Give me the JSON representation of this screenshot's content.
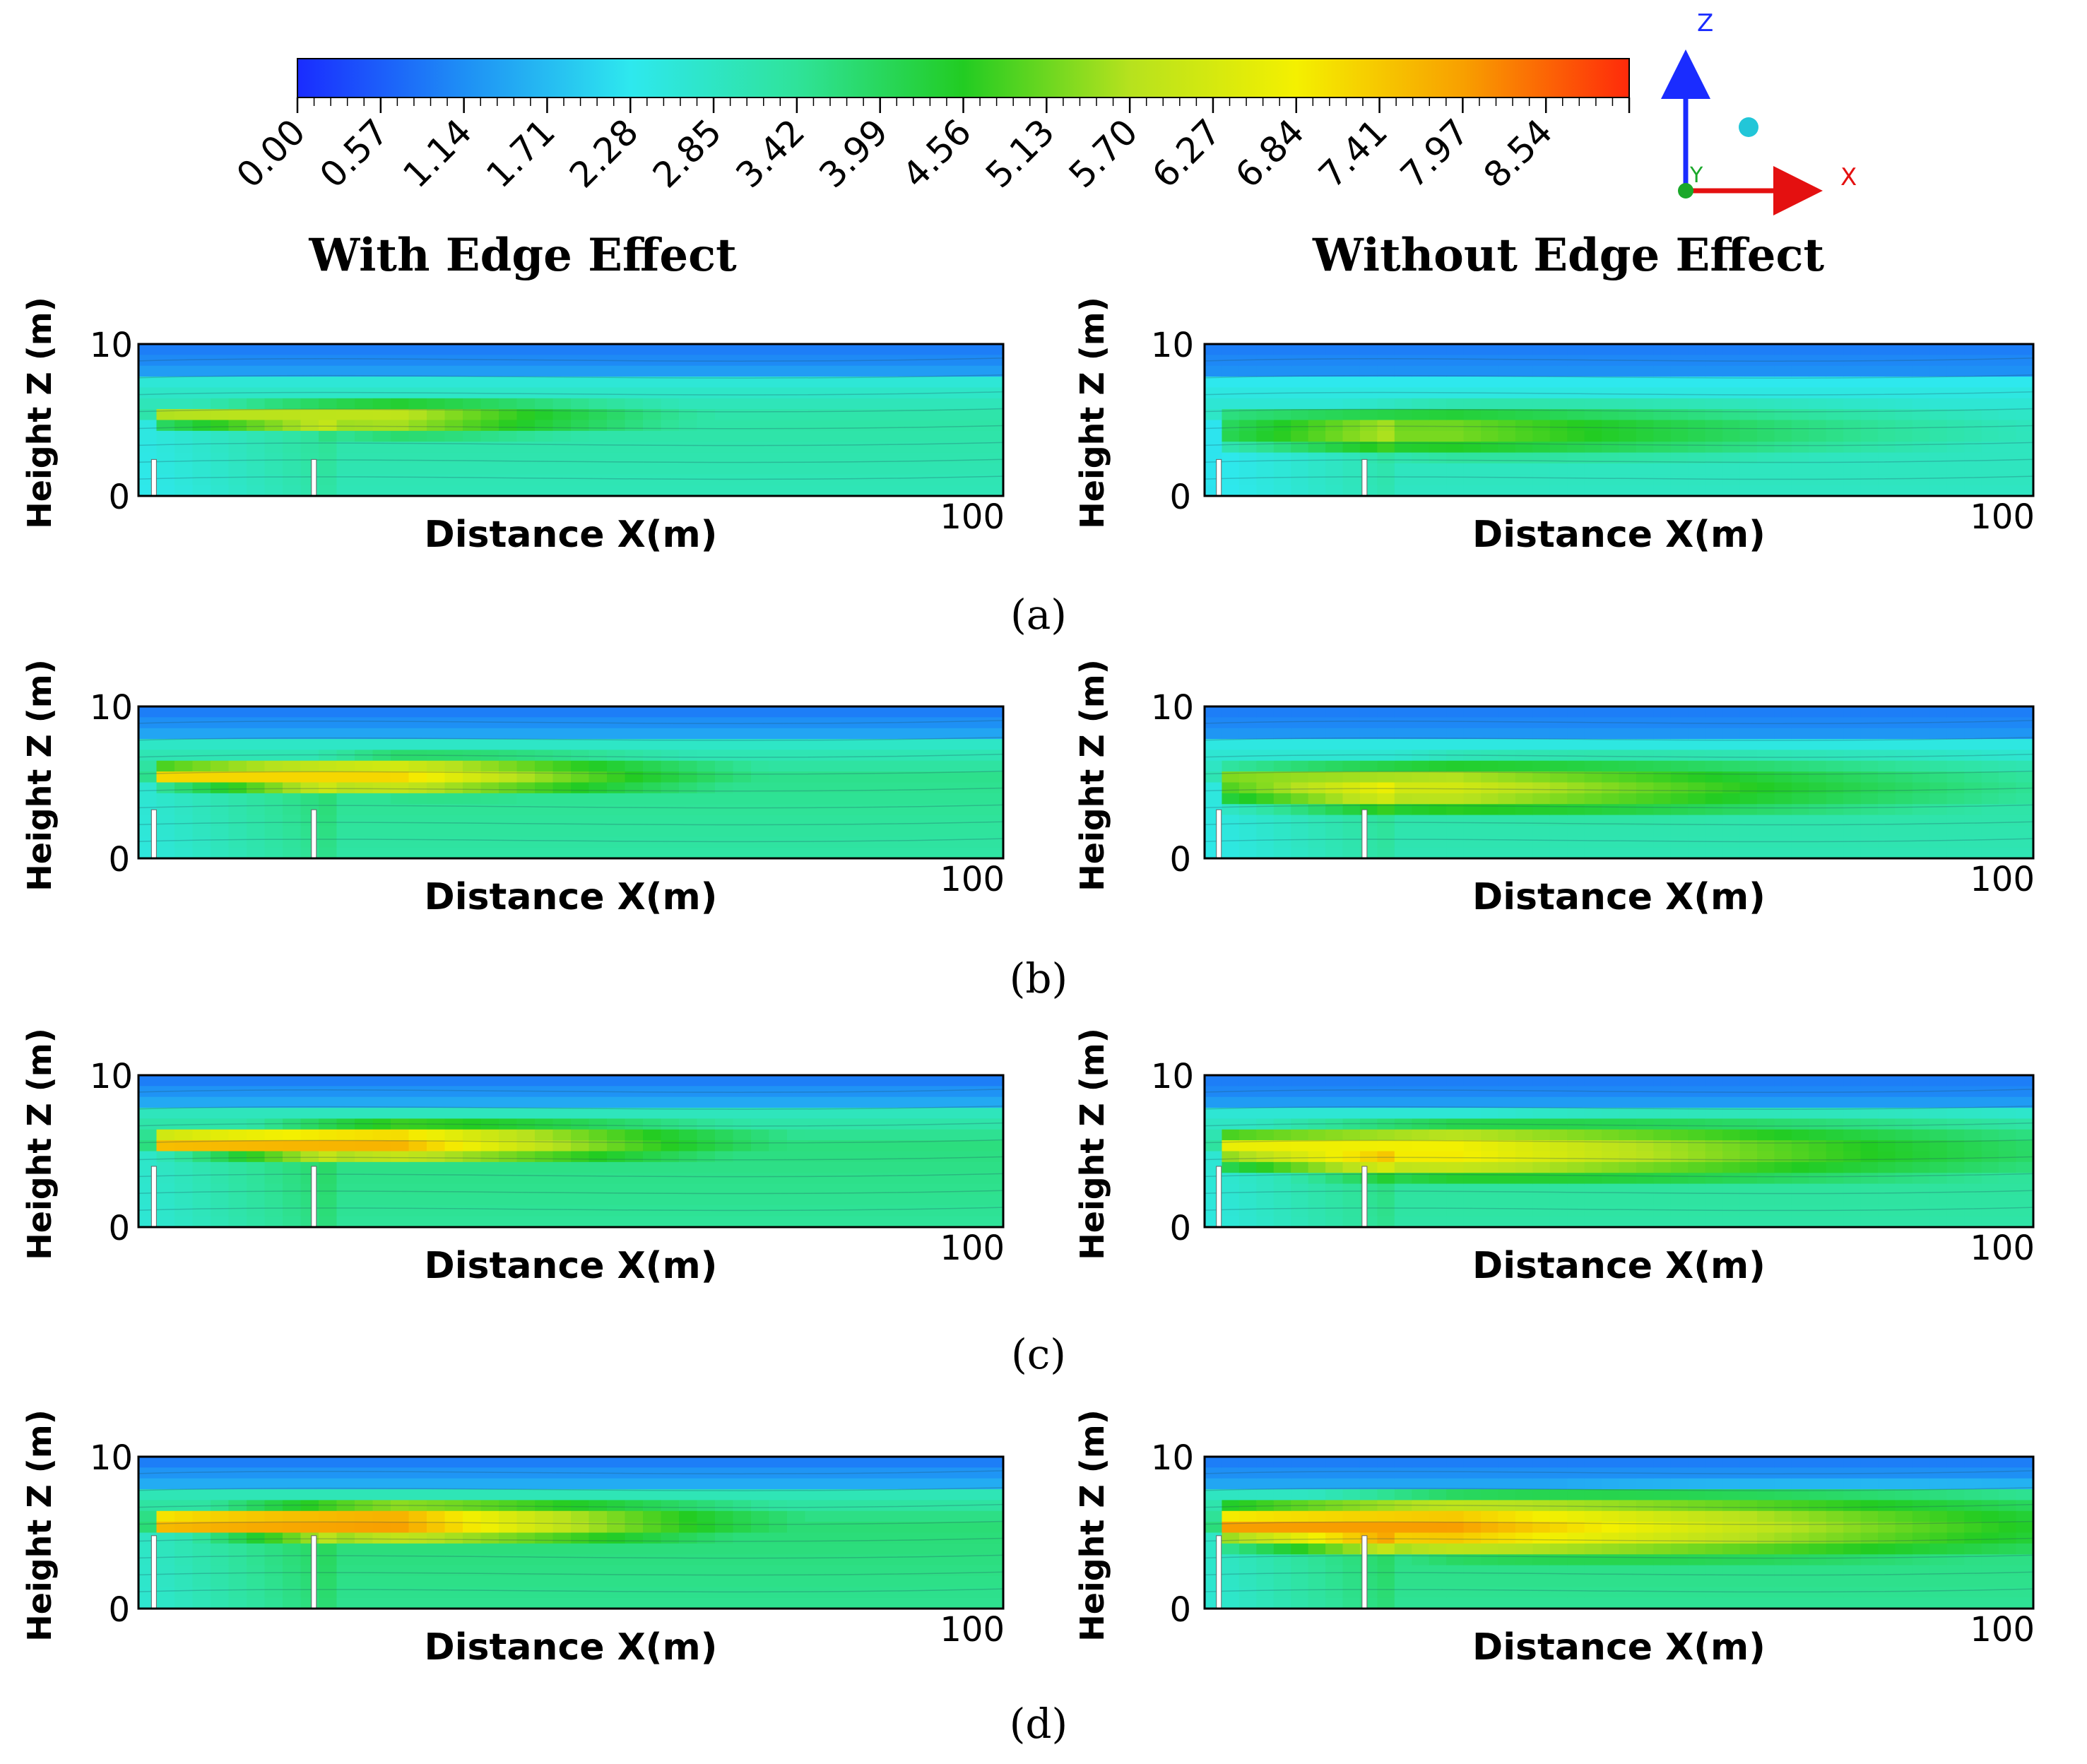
{
  "chart_data": {
    "type": "heatmap",
    "colorbar": {
      "min": 0,
      "max": 9.12,
      "tick_labels": [
        "0.00",
        "0.57",
        "1.14",
        "1.71",
        "2.28",
        "2.85",
        "3.42",
        "3.99",
        "4.56",
        "5.13",
        "5.70",
        "6.27",
        "6.84",
        "7.41",
        "7.97",
        "8.54"
      ],
      "colormap": [
        "#1a2cff",
        "#1e8ff5",
        "#2ee8ee",
        "#2fe39a",
        "#22cc22",
        "#b6e21e",
        "#f4f000",
        "#f8a000",
        "#ff2a0a"
      ]
    },
    "axis_triad": {
      "z": "Z",
      "y": "Y",
      "x": "X"
    },
    "column_titles": [
      "With Edge Effect",
      "Without Edge Effect"
    ],
    "panels": [
      {
        "id": "a",
        "caption": "(a)",
        "plots": [
          {
            "edge_effect": true,
            "xlabel": "Distance X(m)",
            "ylabel": "Height Z (m)",
            "x_tick": "100",
            "y_ticks": [
              "10",
              "0"
            ],
            "xlim": [
              0,
              100
            ],
            "zlim": [
              0,
              10
            ],
            "peak_value": 6.0
          },
          {
            "edge_effect": false,
            "xlabel": "Distance X(m)",
            "ylabel": "Height Z (m)",
            "x_tick": "100",
            "y_ticks": [
              "10",
              "0"
            ],
            "xlim": [
              0,
              100
            ],
            "zlim": [
              0,
              10
            ],
            "peak_value": 5.3
          }
        ]
      },
      {
        "id": "b",
        "caption": "(b)",
        "plots": [
          {
            "edge_effect": true,
            "xlabel": "Distance X(m)",
            "ylabel": "Height Z (m)",
            "x_tick": "100",
            "y_ticks": [
              "10",
              "0"
            ],
            "xlim": [
              0,
              100
            ],
            "zlim": [
              0,
              10
            ],
            "peak_value": 7.2
          },
          {
            "edge_effect": false,
            "xlabel": "Distance X(m)",
            "ylabel": "Height Z (m)",
            "x_tick": "100",
            "y_ticks": [
              "10",
              "0"
            ],
            "xlim": [
              0,
              100
            ],
            "zlim": [
              0,
              10
            ],
            "peak_value": 6.2
          }
        ]
      },
      {
        "id": "c",
        "caption": "(c)",
        "plots": [
          {
            "edge_effect": true,
            "xlabel": "Distance X(m)",
            "ylabel": "Height Z (m)",
            "x_tick": "100",
            "y_ticks": [
              "10",
              "0"
            ],
            "xlim": [
              0,
              100
            ],
            "zlim": [
              0,
              10
            ],
            "peak_value": 7.8
          },
          {
            "edge_effect": false,
            "xlabel": "Distance X(m)",
            "ylabel": "Height Z (m)",
            "x_tick": "100",
            "y_ticks": [
              "10",
              "0"
            ],
            "xlim": [
              0,
              100
            ],
            "zlim": [
              0,
              10
            ],
            "peak_value": 7.0
          }
        ]
      },
      {
        "id": "d",
        "caption": "(d)",
        "plots": [
          {
            "edge_effect": true,
            "xlabel": "Distance X(m)",
            "ylabel": "Height Z (m)",
            "x_tick": "100",
            "y_ticks": [
              "10",
              "0"
            ],
            "xlim": [
              0,
              100
            ],
            "zlim": [
              0,
              10
            ],
            "peak_value": 8.2
          },
          {
            "edge_effect": false,
            "xlabel": "Distance X(m)",
            "ylabel": "Height Z (m)",
            "x_tick": "100",
            "y_ticks": [
              "10",
              "0"
            ],
            "xlim": [
              0,
              100
            ],
            "zlim": [
              0,
              10
            ],
            "peak_value": 8.0
          }
        ]
      }
    ]
  }
}
